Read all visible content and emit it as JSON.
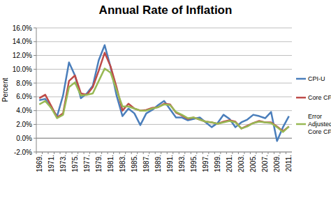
{
  "chart_data": {
    "type": "line",
    "title": "Annual Rate of Inflation",
    "y_label": "Percent",
    "categories": [
      "1969.",
      null,
      "1971.",
      null,
      "1973.",
      null,
      "1975.",
      null,
      "1977.",
      null,
      "1979.",
      null,
      "1981.",
      null,
      "1983.",
      null,
      "1985.",
      null,
      "1987.",
      null,
      "1989.",
      null,
      "1991.",
      null,
      "1993.",
      null,
      "1995.",
      null,
      "1997.",
      null,
      "1999.",
      null,
      "2001.",
      null,
      "2003.",
      null,
      "2005.",
      null,
      "2007.",
      null,
      "2009.",
      null,
      "2011."
    ],
    "series": [
      {
        "name": "CPI-U",
        "color": "#4a7ebb",
        "values": [
          5.5,
          5.7,
          4.4,
          3.2,
          6.2,
          11.0,
          9.1,
          5.8,
          6.5,
          7.6,
          11.3,
          13.5,
          10.3,
          6.2,
          3.2,
          4.3,
          3.6,
          1.9,
          3.6,
          4.1,
          4.8,
          5.4,
          4.2,
          3.0,
          3.0,
          2.6,
          2.8,
          3.0,
          2.3,
          1.6,
          2.2,
          3.4,
          2.8,
          1.6,
          2.3,
          2.7,
          3.4,
          3.2,
          2.9,
          3.8,
          -0.4,
          1.6,
          3.2
        ]
      },
      {
        "name": "Core CPI",
        "color": "#be4b48",
        "values": [
          5.8,
          6.3,
          4.7,
          3.0,
          3.6,
          8.3,
          9.1,
          6.5,
          6.3,
          7.4,
          9.8,
          12.4,
          10.4,
          7.4,
          4.0,
          5.0,
          4.3,
          4.0,
          4.1,
          4.4,
          4.5,
          5.0,
          4.9,
          3.7,
          3.3,
          2.8,
          3.0,
          2.7,
          2.4,
          2.3,
          2.1,
          2.4,
          2.6,
          2.4,
          1.4,
          1.8,
          2.2,
          2.5,
          2.3,
          2.3,
          1.7,
          1.0,
          1.7
        ]
      },
      {
        "name": "Error Adjusted Core CPI",
        "color": "#98b954",
        "values": [
          4.9,
          5.4,
          4.4,
          2.9,
          3.4,
          7.4,
          8.1,
          6.2,
          6.3,
          6.5,
          8.3,
          10.1,
          9.5,
          7.0,
          4.6,
          4.6,
          4.3,
          4.0,
          4.0,
          4.3,
          4.5,
          4.9,
          4.8,
          3.8,
          3.4,
          2.9,
          3.0,
          2.7,
          2.4,
          2.3,
          2.1,
          2.3,
          2.5,
          2.3,
          1.4,
          1.7,
          2.2,
          2.4,
          2.3,
          2.2,
          1.6,
          0.9,
          1.7
        ]
      }
    ],
    "ylim": [
      -2,
      16
    ],
    "yticks": [
      {
        "value": -2,
        "label": "-2.0%"
      },
      {
        "value": 0,
        "label": "0.0%"
      },
      {
        "value": 2,
        "label": "2.0%"
      },
      {
        "value": 4,
        "label": "4.0%"
      },
      {
        "value": 6,
        "label": "6.0%"
      },
      {
        "value": 8,
        "label": "8.0%"
      },
      {
        "value": 10,
        "label": "10.0%"
      },
      {
        "value": 12,
        "label": "12.0%"
      },
      {
        "value": 14,
        "label": "14.0%"
      },
      {
        "value": 16,
        "label": "16.0%"
      }
    ],
    "grid": true,
    "legend": "right"
  }
}
